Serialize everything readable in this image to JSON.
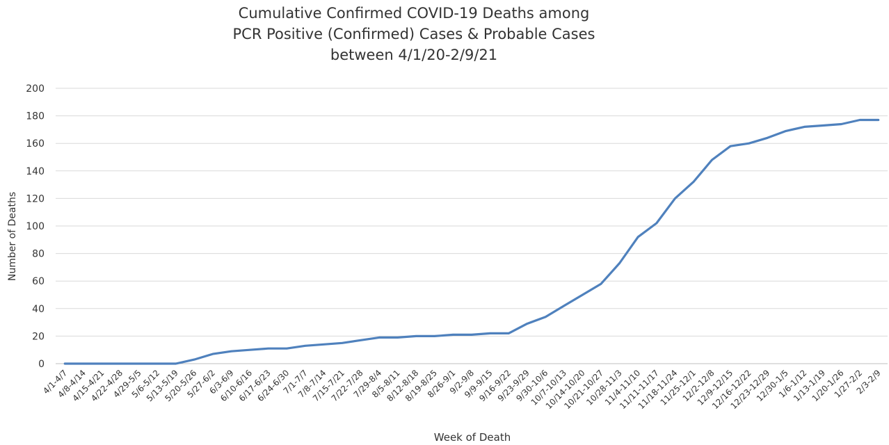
{
  "chart_data": {
    "type": "line",
    "title_lines": [
      "Cumulative Confirmed COVID-19 Deaths among",
      "PCR Positive (Confirmed) Cases & Probable Cases",
      "between 4/1/20-2/9/21"
    ],
    "xlabel": "Week of Death",
    "ylabel": "Number of Deaths",
    "ylim": [
      0,
      200
    ],
    "yticks": [
      0,
      20,
      40,
      60,
      80,
      100,
      120,
      140,
      160,
      180,
      200
    ],
    "grid": true,
    "legend": "none",
    "line_color": "#4f81bd",
    "categories": [
      "4/1-4/7",
      "4/8-4/14",
      "4/15-4/21",
      "4/22-4/28",
      "4/29-5/5",
      "5/6-5/12",
      "5/13-5/19",
      "5/20-5/26",
      "5/27-6/2",
      "6/3-6/9",
      "6/10-6/16",
      "6/17-6/23",
      "6/24-6/30",
      "7/1-7/7",
      "7/8-7/14",
      "7/15-7/21",
      "7/22-7/28",
      "7/29-8/4",
      "8/5-8/11",
      "8/12-8/18",
      "8/19-8/25",
      "8/26-9/1",
      "9/2-9/8",
      "9/9-9/15",
      "9/16-9/22",
      "9/23-9/29",
      "9/30-10/6",
      "10/7-10/13",
      "10/14-10/20",
      "10/21-10/27",
      "10/28-11/3",
      "11/4-11/10",
      "11/11-11/17",
      "11/18-11/24",
      "11/25-12/1",
      "12/2-12/8",
      "12/9-12/15",
      "12/16-12/22",
      "12/23-12/29",
      "12/30-1/5",
      "1/6-1/12",
      "1/13-1/19",
      "1/20-1/26",
      "1/27-2/2",
      "2/3-2/9"
    ],
    "series": [
      {
        "values": [
          0,
          0,
          0,
          0,
          0,
          0,
          0,
          3,
          7,
          9,
          10,
          11,
          11,
          13,
          14,
          15,
          17,
          19,
          19,
          20,
          20,
          21,
          21,
          22,
          22,
          29,
          34,
          42,
          50,
          58,
          73,
          92,
          102,
          120,
          132,
          148,
          158,
          160,
          164,
          169,
          172,
          173,
          174,
          177,
          177
        ]
      }
    ]
  }
}
